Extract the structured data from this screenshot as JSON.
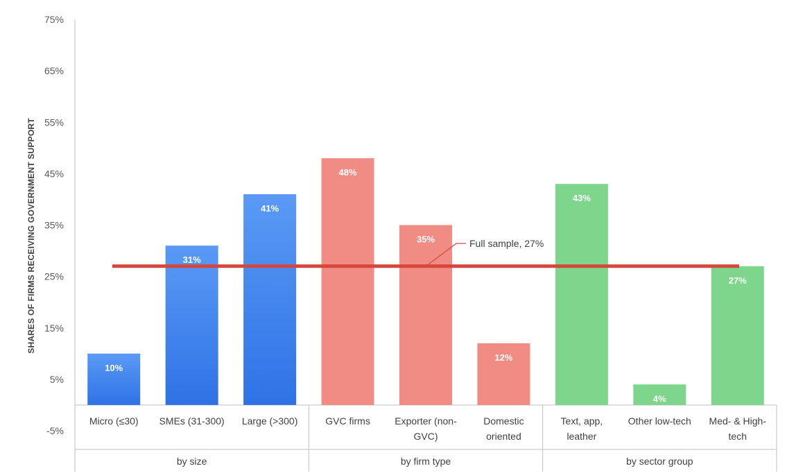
{
  "chart_data": {
    "type": "bar",
    "ylabel": "SHARES OF FIRMS RECEIVING GOVERNMENT SUPPORT",
    "ylim": [
      -5,
      75
    ],
    "yticks": [
      "75%",
      "65%",
      "55%",
      "45%",
      "35%",
      "25%",
      "15%",
      "5%",
      "-5%"
    ],
    "ytick_values": [
      75,
      65,
      55,
      45,
      35,
      25,
      15,
      5,
      -5
    ],
    "grid": false,
    "categories": [
      "Micro (≤30)",
      "SMEs (31-300)",
      "Large (>300)",
      "GVC firms",
      "Exporter (non-GVC)",
      "Domestic oriented",
      "Text, app, leather",
      "Other low-tech",
      "Med- & High-tech"
    ],
    "category_lines": [
      [
        "Micro (≤30)"
      ],
      [
        "SMEs (31-300)"
      ],
      [
        "Large (>300)"
      ],
      [
        "GVC firms"
      ],
      [
        "Exporter (non-",
        "GVC)"
      ],
      [
        "Domestic",
        "oriented"
      ],
      [
        "Text, app,",
        "leather"
      ],
      [
        "Other low-tech"
      ],
      [
        "Med- & High-",
        "tech"
      ]
    ],
    "values": [
      10,
      31,
      41,
      48,
      35,
      12,
      43,
      4,
      27
    ],
    "data_labels": [
      "10%",
      "31%",
      "41%",
      "48%",
      "35%",
      "12%",
      "43%",
      "4%",
      "27%"
    ],
    "groups": [
      {
        "name": "by size",
        "categories": [
          "Micro (≤30)",
          "SMEs (31-300)",
          "Large (>300)"
        ],
        "color": "#3b82f0"
      },
      {
        "name": "by firm type",
        "categories": [
          "GVC firms",
          "Exporter (non-GVC)",
          "Domestic oriented"
        ],
        "color": "#f08c84"
      },
      {
        "name": "by sector group",
        "categories": [
          "Text, app, leather",
          "Other low-tech",
          "Med- & High-tech"
        ],
        "color": "#7dd68c"
      }
    ],
    "reference_line": {
      "label": "Full sample, 27%",
      "value": 27,
      "color": "#d6463c"
    }
  }
}
